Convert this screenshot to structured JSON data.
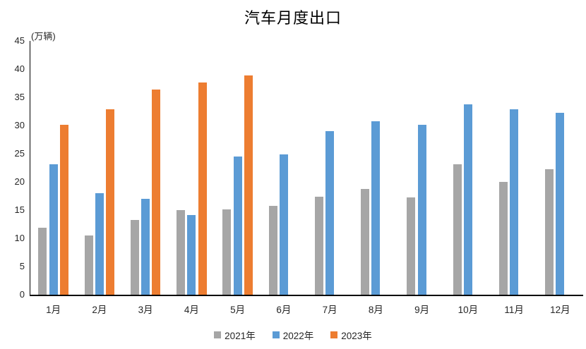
{
  "title": "汽车月度出口",
  "unit_label": "(万辆)",
  "colors": {
    "series_2021": "#A6A6A6",
    "series_2022": "#5B9BD5",
    "series_2023": "#ED7D31",
    "axis": "#000000",
    "text": "#262626"
  },
  "chart_data": {
    "type": "bar",
    "title": "汽车月度出口",
    "ylabel": "(万辆)",
    "xlabel": "",
    "categories": [
      "1月",
      "2月",
      "3月",
      "4月",
      "5月",
      "6月",
      "7月",
      "8月",
      "9月",
      "10月",
      "11月",
      "12月"
    ],
    "series": [
      {
        "name": "2021年",
        "color": "#A6A6A6",
        "values": [
          11.9,
          10.5,
          13.2,
          15.0,
          15.1,
          15.8,
          17.4,
          18.7,
          17.3,
          23.1,
          20.0,
          22.3
        ]
      },
      {
        "name": "2022年",
        "color": "#5B9BD5",
        "values": [
          23.1,
          18.0,
          17.0,
          14.1,
          24.5,
          24.9,
          29.0,
          30.8,
          30.1,
          33.7,
          32.9,
          32.3
        ]
      },
      {
        "name": "2023年",
        "color": "#ED7D31",
        "values": [
          30.1,
          32.9,
          36.4,
          37.6,
          38.9,
          null,
          null,
          null,
          null,
          null,
          null,
          null
        ]
      }
    ],
    "ylim": [
      0,
      45
    ],
    "ytick_step": 5,
    "grid": false,
    "legend_position": "bottom"
  }
}
